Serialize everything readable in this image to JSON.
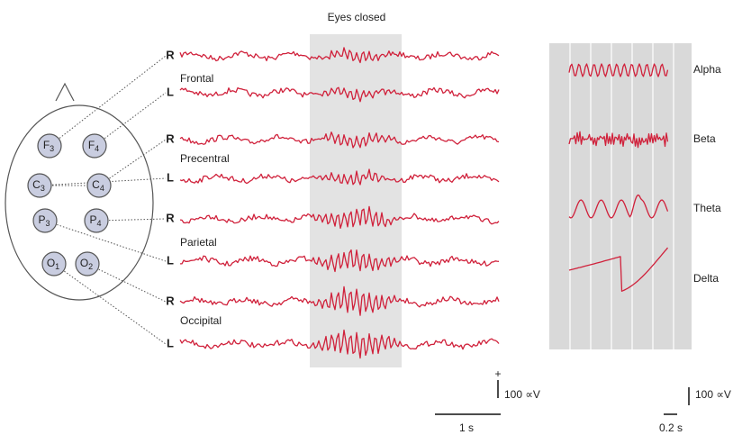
{
  "header": {
    "title": "Eyes closed"
  },
  "traces": [
    {
      "side": "R"
    },
    {
      "side": "L"
    },
    {
      "side": "R"
    },
    {
      "side": "L"
    },
    {
      "side": "R"
    },
    {
      "side": "L"
    },
    {
      "side": "R"
    },
    {
      "side": "L"
    }
  ],
  "regions": [
    "Frontal",
    "Precentral",
    "Parietal",
    "Occipital"
  ],
  "electrodes": [
    {
      "letter": "F",
      "sub": "3"
    },
    {
      "letter": "F",
      "sub": "4"
    },
    {
      "letter": "C",
      "sub": "3"
    },
    {
      "letter": "C",
      "sub": "4"
    },
    {
      "letter": "P",
      "sub": "3"
    },
    {
      "letter": "P",
      "sub": "4"
    },
    {
      "letter": "O",
      "sub": "1"
    },
    {
      "letter": "O",
      "sub": "2"
    }
  ],
  "bands": [
    "Alpha",
    "Beta",
    "Theta",
    "Delta"
  ],
  "scale_bars": {
    "main": {
      "plus": "+",
      "amplitude": "100 ∝V",
      "time": "1 s"
    },
    "inset": {
      "amplitude": "100 ∝V",
      "time": "0.2 s"
    }
  }
}
